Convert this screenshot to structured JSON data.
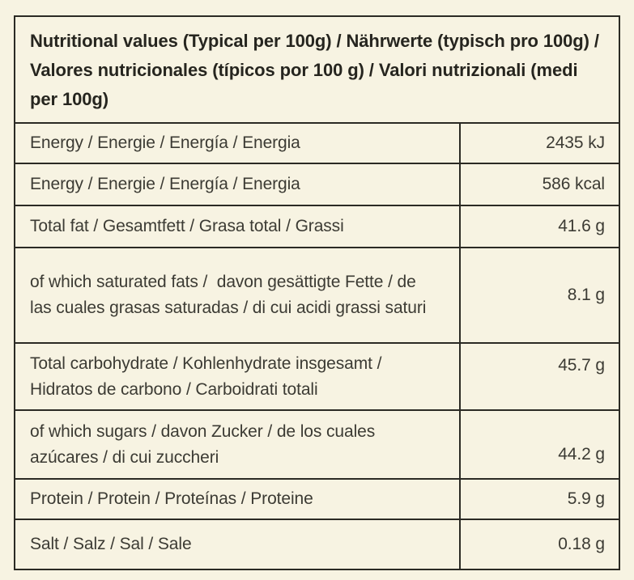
{
  "page": {
    "background_color": "#f7f3e2",
    "border_color": "#2b2a24",
    "text_color": "#3c3b34",
    "header_text_color": "#26251f"
  },
  "table": {
    "title": "Nutritional values (Typical per 100g) / Nährwerte (typisch pro 100g) / Valores nutricionales (típicos por 100 g) / Valori nutrizionali (medi per 100g)",
    "rows": [
      {
        "label": "Energy / Energie / Energía / Energia",
        "value": "2435 kJ"
      },
      {
        "label": "Energy / Energie / Energía / Energia",
        "value": "586 kcal"
      },
      {
        "label": "Total fat / Gesamtfett / Grasa total / Grassi",
        "value": "41.6 g"
      },
      {
        "label": "of which saturated fats /  davon gesättigte Fette / de las cuales grasas saturadas / di cui acidi grassi saturi",
        "value": "8.1 g"
      },
      {
        "label": "Total carbohydrate / Kohlenhydrate insgesamt / Hidratos de carbono / Carboidrati totali",
        "value": "45.7 g"
      },
      {
        "label": "of which sugars / davon Zucker / de los cuales azúcares / di cui zuccheri",
        "value": "44.2 g"
      },
      {
        "label": "Protein / Protein / Proteínas / Proteine",
        "value": "5.9 g"
      },
      {
        "label": "Salt / Salz / Sal / Sale",
        "value": "0.18 g"
      }
    ]
  }
}
